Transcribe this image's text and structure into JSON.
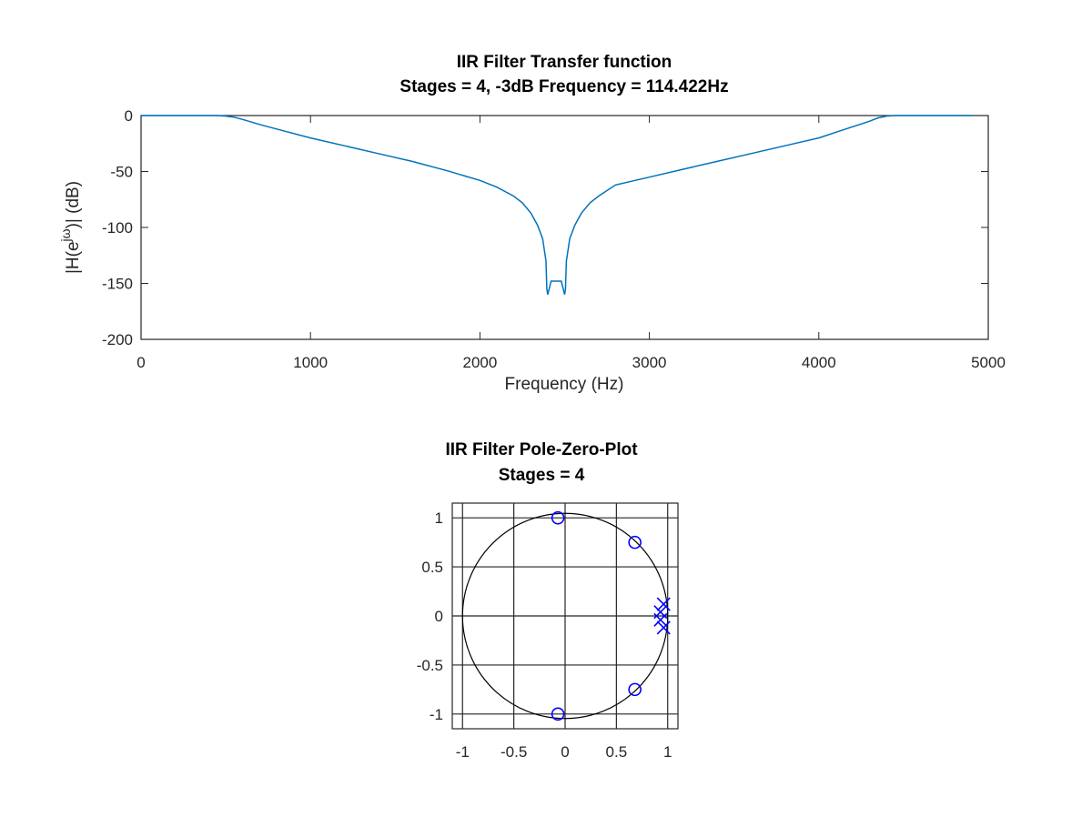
{
  "chart_data": [
    {
      "type": "line",
      "title": [
        "IIR Filter Transfer function",
        "Stages = 4, -3dB Frequency = 114.422Hz"
      ],
      "xlabel": "Frequency (Hz)",
      "ylabel_main": "|H(e",
      "ylabel_sup": "jω",
      "ylabel_tail": ")| (dB)",
      "xlim": [
        0,
        5000
      ],
      "ylim": [
        -200,
        0
      ],
      "xticks": [
        0,
        1000,
        2000,
        3000,
        4000,
        5000
      ],
      "yticks": [
        0,
        -50,
        -100,
        -150,
        -200
      ],
      "grid": false,
      "line_color": "#0072bd",
      "series": [
        {
          "x": [
            0,
            300,
            450,
            500,
            550,
            600,
            700,
            800,
            1000,
            1200,
            1400,
            1600,
            1800,
            2000,
            2100,
            2200,
            2250,
            2300,
            2340,
            2370,
            2390,
            2395,
            2400,
            2420,
            2450,
            2480,
            2500,
            2505,
            2510,
            2530,
            2560,
            2600,
            2650,
            2700,
            2800,
            3000,
            3200,
            3400,
            3600,
            3800,
            4000,
            4100,
            4200,
            4300,
            4350,
            4400,
            4450,
            4500,
            4600,
            4900
          ],
          "y": [
            0,
            0,
            0,
            -0.5,
            -1.5,
            -3.5,
            -8,
            -12,
            -20,
            -27,
            -34,
            -41,
            -49,
            -58,
            -64,
            -72,
            -78,
            -87,
            -98,
            -110,
            -130,
            -155,
            -160,
            -148,
            -148,
            -148,
            -160,
            -155,
            -130,
            -110,
            -98,
            -87,
            -78,
            -72,
            -62,
            -55,
            -48,
            -41,
            -34,
            -27,
            -20,
            -15,
            -10,
            -5,
            -2,
            -0.5,
            0,
            0,
            0,
            0
          ]
        }
      ]
    },
    {
      "type": "scatter",
      "title": [
        "IIR Filter Pole-Zero-Plot",
        "Stages = 4"
      ],
      "xlim": [
        -1.1,
        1.1
      ],
      "ylim": [
        -1.15,
        1.15
      ],
      "xticks": [
        -1,
        -0.5,
        0,
        0.5,
        1
      ],
      "yticks": [
        1,
        0.5,
        0,
        -0.5,
        -1
      ],
      "grid": true,
      "unit_circle": true,
      "marker_color": "#0000ff",
      "zeros": [
        [
          -0.07,
          1.0
        ],
        [
          0.68,
          0.75
        ],
        [
          0.68,
          -0.75
        ],
        [
          -0.07,
          -1.0
        ]
      ],
      "poles": [
        [
          0.96,
          0.12
        ],
        [
          0.93,
          0.04
        ],
        [
          0.93,
          -0.04
        ],
        [
          0.96,
          -0.12
        ]
      ]
    }
  ]
}
